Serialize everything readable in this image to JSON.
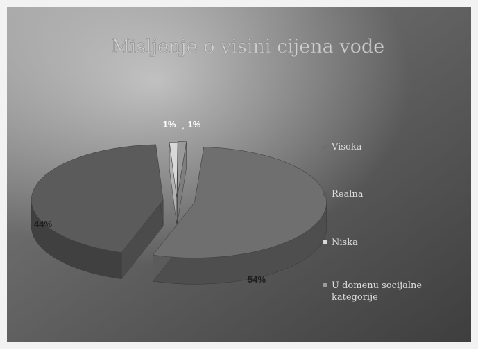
{
  "chart_data": {
    "type": "pie",
    "title": "Misljenje o visini cijena vode",
    "categories": [
      "Visoka",
      "Realna",
      "Niska",
      "U domenu socijalne kategorije"
    ],
    "values": [
      54,
      44,
      1,
      1
    ],
    "data_labels": [
      "54%",
      "44%",
      "1%",
      "1%"
    ],
    "legend_position": "right",
    "colors": [
      "#6f6f6f",
      "#5b5b5b",
      "#d8d8d8",
      "#9a9a9a"
    ]
  }
}
